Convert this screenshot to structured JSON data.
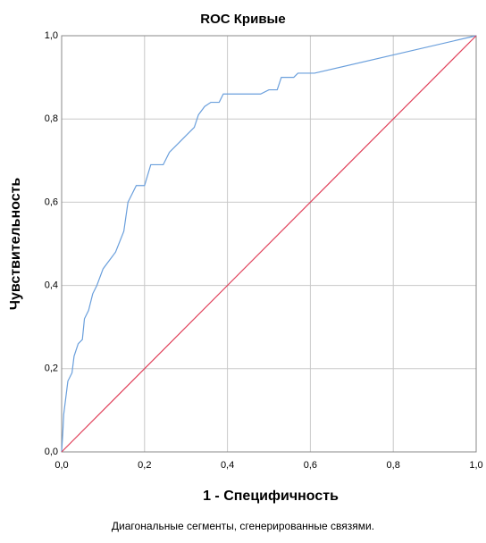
{
  "chart_data": {
    "type": "line",
    "title": "ROC Кривые",
    "xlabel": "1 - Специфичность",
    "ylabel": "Чувствительность",
    "footnote": "Диагональные сегменты, сгенерированные связями.",
    "series": [
      {
        "color": "#6a9fdc",
        "x": [
          0,
          0.003,
          0.005,
          0.01,
          0.015,
          0.025,
          0.03,
          0.04,
          0.05,
          0.055,
          0.065,
          0.075,
          0.085,
          0.1,
          0.115,
          0.13,
          0.15,
          0.16,
          0.17,
          0.18,
          0.2,
          0.215,
          0.245,
          0.26,
          0.28,
          0.3,
          0.32,
          0.33,
          0.345,
          0.36,
          0.38,
          0.39,
          0.48,
          0.5,
          0.52,
          0.53,
          0.56,
          0.57,
          0.61,
          1.0
        ],
        "values": [
          0,
          0.05,
          0.09,
          0.13,
          0.17,
          0.19,
          0.23,
          0.26,
          0.27,
          0.32,
          0.34,
          0.38,
          0.4,
          0.44,
          0.46,
          0.48,
          0.53,
          0.6,
          0.62,
          0.64,
          0.64,
          0.69,
          0.69,
          0.72,
          0.74,
          0.76,
          0.78,
          0.81,
          0.83,
          0.84,
          0.84,
          0.86,
          0.86,
          0.87,
          0.87,
          0.9,
          0.9,
          0.91,
          0.91,
          1.0
        ]
      },
      {
        "color": "#e0405a",
        "x": [
          0,
          1.0
        ],
        "values": [
          0,
          1.0
        ]
      }
    ],
    "xlim": [
      0,
      1.0
    ],
    "ylim": [
      0,
      1.0
    ],
    "xticks": [
      {
        "value": 0,
        "label": "0,0"
      },
      {
        "value": 0.2,
        "label": "0,2"
      },
      {
        "value": 0.4,
        "label": "0,4"
      },
      {
        "value": 0.6,
        "label": "0,6"
      },
      {
        "value": 0.8,
        "label": "0,8"
      },
      {
        "value": 1.0,
        "label": "1,0"
      }
    ],
    "yticks": [
      {
        "value": 0,
        "label": "0,0"
      },
      {
        "value": 0.2,
        "label": "0,2"
      },
      {
        "value": 0.4,
        "label": "0,4"
      },
      {
        "value": 0.6,
        "label": "0,6"
      },
      {
        "value": 0.8,
        "label": "0,8"
      },
      {
        "value": 1.0,
        "label": "1,0"
      }
    ],
    "grid": true
  }
}
